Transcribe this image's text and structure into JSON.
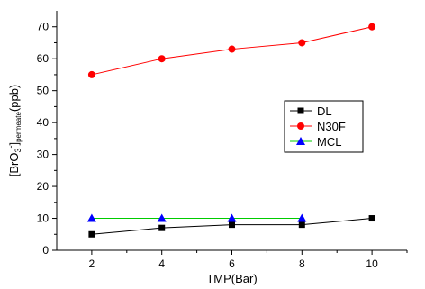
{
  "chart_data": {
    "type": "line",
    "xlabel": "TMP(Bar)",
    "ylabel": {
      "prefix": "[BrO",
      "sub1": "3",
      "sup": "-",
      "mid": "]",
      "sub2": "permeate",
      "suffix": "(ppb)"
    },
    "xlim": [
      1,
      11
    ],
    "ylim": [
      0,
      75
    ],
    "x_ticks": [
      2,
      4,
      6,
      8,
      10
    ],
    "y_ticks": [
      0,
      10,
      20,
      30,
      40,
      50,
      60,
      70
    ],
    "grid": false,
    "legend_position": "right-middle",
    "series": [
      {
        "name": "DL",
        "x": [
          2,
          4,
          6,
          8,
          10
        ],
        "y": [
          5,
          7,
          8,
          8,
          10
        ],
        "color": "#000000",
        "line_color": "#000000",
        "marker": "square"
      },
      {
        "name": "N30F",
        "x": [
          2,
          4,
          6,
          8,
          10
        ],
        "y": [
          55,
          60,
          63,
          65,
          70
        ],
        "color": "#ff0000",
        "line_color": "#ff0000",
        "marker": "circle"
      },
      {
        "name": "MCL",
        "x": [
          2,
          4,
          6,
          8
        ],
        "y": [
          10,
          10,
          10,
          10
        ],
        "color": "#0000ff",
        "line_color": "#00cc00",
        "marker": "triangle"
      }
    ]
  }
}
